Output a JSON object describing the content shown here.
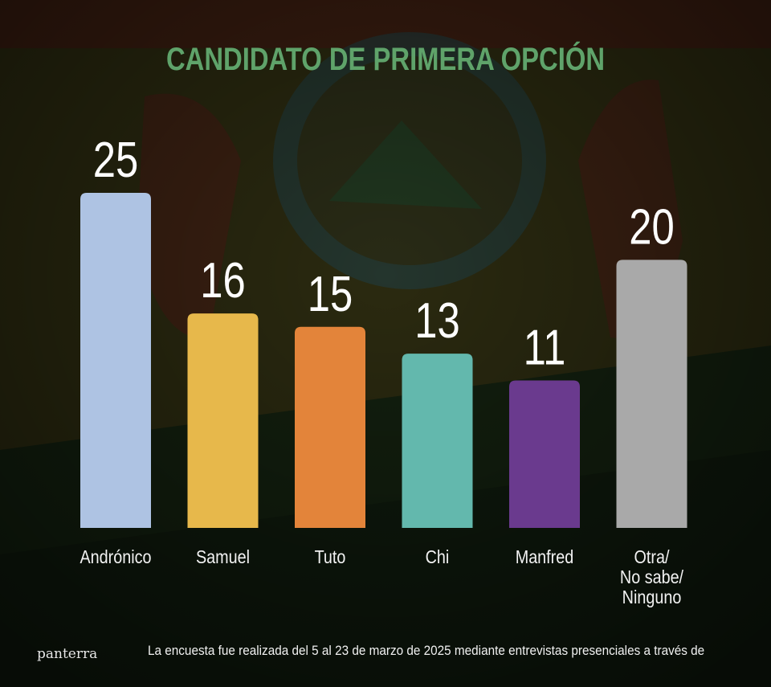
{
  "chart_data": {
    "type": "bar",
    "title": "CANDIDATO DE PRIMERA OPCIÓN",
    "categories": [
      "Andrónico",
      "Samuel",
      "Tuto",
      "Chi",
      "Manfred",
      "Otra/\nNo sabe/\nNinguno"
    ],
    "values": [
      25,
      16,
      15,
      13,
      11,
      20
    ],
    "colors": [
      "#aec3e3",
      "#e7b84b",
      "#e3843a",
      "#63b8ad",
      "#6a3a8e",
      "#a9a9a9"
    ],
    "ylim": [
      0,
      25
    ],
    "grid": false,
    "legend": "none",
    "data_labels": true
  },
  "footer": {
    "brand": "panterra",
    "note": "La encuesta fue realizada del 5 al 23 de marzo de 2025 mediante entrevistas presenciales a través de"
  }
}
